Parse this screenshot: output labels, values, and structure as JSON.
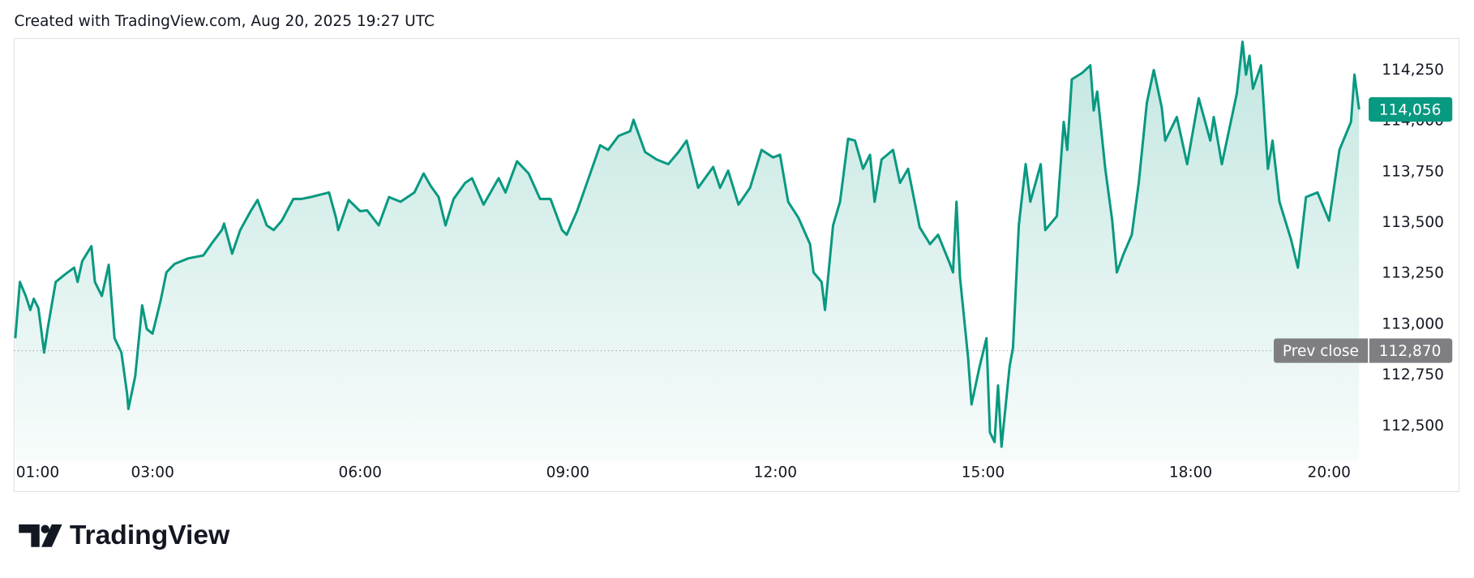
{
  "chart_data": {
    "type": "line",
    "title": "Created with TradingView.com, Aug 20, 2025 19:27 UTC",
    "color": "#089981",
    "grid": false,
    "x": [
      61,
      65,
      70,
      74,
      77,
      81,
      86,
      89,
      96,
      104,
      112,
      115,
      119,
      127,
      130,
      136,
      142,
      147,
      153,
      158,
      159,
      165,
      171,
      175,
      180,
      187,
      192,
      199,
      211,
      224,
      232,
      240,
      242,
      249,
      256,
      265,
      271,
      279,
      285,
      292,
      302,
      309,
      317,
      333,
      339,
      341,
      350,
      360,
      366,
      376,
      385,
      395,
      407,
      415,
      421,
      428,
      434,
      441,
      451,
      457,
      467,
      473,
      480,
      486,
      496,
      506,
      516,
      525,
      535,
      539,
      548,
      558,
      568,
      575,
      584,
      594,
      597,
      607,
      617,
      627,
      636,
      643,
      653,
      666,
      672,
      679,
      688,
      698,
      708,
      718,
      724,
      731,
      740,
      750,
      753,
      760,
      763,
      770,
      776,
      783,
      789,
      796,
      802,
      806,
      812,
      822,
      828,
      835,
      845,
      854,
      861,
      871,
      874,
      877,
      880,
      887,
      890,
      897,
      903,
      906,
      910,
      913,
      916,
      923,
      926,
      931,
      937,
      941,
      950,
      954,
      964,
      970,
      973,
      977,
      986,
      993,
      996,
      999,
      1006,
      1012,
      1016,
      1022,
      1029,
      1035,
      1042,
      1048,
      1055,
      1058,
      1068,
      1077,
      1087,
      1097,
      1100,
      1107,
      1120,
      1125,
      1128,
      1131,
      1134,
      1141,
      1147,
      1151,
      1157,
      1167,
      1173,
      1180,
      1190,
      1200,
      1209,
      1219,
      1222,
      1226
    ],
    "values": [
      112931,
      113208,
      113139,
      113070,
      113125,
      113079,
      112861,
      112977,
      113208,
      113245,
      113278,
      113208,
      113310,
      113384,
      113208,
      113139,
      113292,
      112931,
      112861,
      112653,
      112583,
      112745,
      113093,
      112977,
      112954,
      113116,
      113255,
      113296,
      113324,
      113338,
      113403,
      113463,
      113495,
      113347,
      113463,
      113556,
      113611,
      113486,
      113463,
      113509,
      113616,
      113616,
      113625,
      113648,
      113523,
      113463,
      113611,
      113556,
      113560,
      113486,
      113625,
      113602,
      113648,
      113741,
      113681,
      113625,
      113486,
      113616,
      113695,
      113718,
      113588,
      113648,
      113718,
      113648,
      113801,
      113741,
      113616,
      113616,
      113463,
      113440,
      113556,
      113718,
      113880,
      113857,
      113926,
      113949,
      114005,
      113847,
      113810,
      113787,
      113847,
      113903,
      113671,
      113773,
      113671,
      113755,
      113588,
      113671,
      113857,
      113820,
      113833,
      113602,
      113523,
      113394,
      113255,
      113208,
      113070,
      113486,
      113602,
      113912,
      113903,
      113764,
      113833,
      113602,
      113810,
      113857,
      113695,
      113764,
      113477,
      113394,
      113440,
      113301,
      113255,
      113602,
      113232,
      112838,
      112606,
      112792,
      112931,
      112468,
      112421,
      112699,
      112398,
      112792,
      112884,
      113486,
      113787,
      113602,
      113787,
      113463,
      113532,
      113995,
      113857,
      114204,
      114236,
      114273,
      114051,
      114144,
      113764,
      113509,
      113255,
      113347,
      113440,
      113695,
      114088,
      114250,
      114065,
      113903,
      114019,
      113787,
      114111,
      113903,
      114019,
      113787,
      114134,
      114389,
      114227,
      114320,
      114158,
      114273,
      113764,
      113903,
      113602,
      113417,
      113278,
      113625,
      113648,
      113509,
      113857,
      113995,
      114227,
      114056
    ],
    "xlim": [
      60,
      1227
    ],
    "xticks": [
      {
        "value": 60,
        "label": "01:00"
      },
      {
        "value": 180,
        "label": "03:00"
      },
      {
        "value": 360,
        "label": "06:00"
      },
      {
        "value": 540,
        "label": "09:00"
      },
      {
        "value": 720,
        "label": "12:00"
      },
      {
        "value": 900,
        "label": "15:00"
      },
      {
        "value": 1080,
        "label": "18:00"
      },
      {
        "value": 1200,
        "label": "20:00"
      }
    ],
    "ylim": [
      112330,
      114400
    ],
    "yticks": [
      {
        "value": 112500,
        "label": "112,500"
      },
      {
        "value": 112750,
        "label": "112,750"
      },
      {
        "value": 113000,
        "label": "113,000"
      },
      {
        "value": 113250,
        "label": "113,250"
      },
      {
        "value": 113500,
        "label": "113,500"
      },
      {
        "value": 113750,
        "label": "113,750"
      },
      {
        "value": 114000,
        "label": "114,000"
      },
      {
        "value": 114250,
        "label": "114,250"
      }
    ],
    "prev_close": {
      "name": "Prev close",
      "value": 112870,
      "label": "112,870"
    },
    "last_price": {
      "value": 114056,
      "label": "114,056"
    }
  },
  "footer": {
    "brand": "TradingView"
  }
}
